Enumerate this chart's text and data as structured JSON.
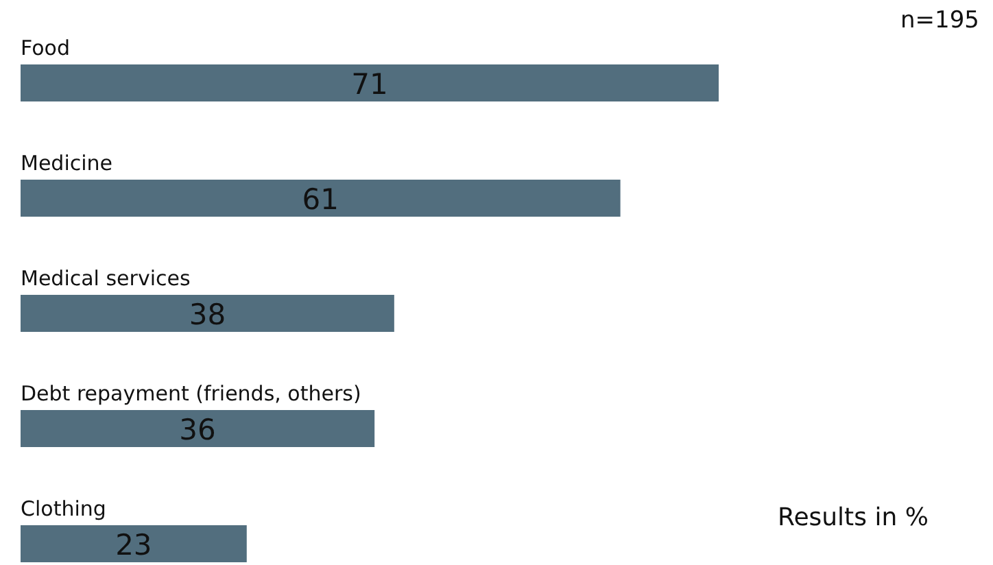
{
  "chart_data": {
    "type": "bar",
    "orientation": "horizontal",
    "categories": [
      "Food",
      "Medicine",
      "Medical services",
      "Debt repayment (friends, others)",
      "Clothing"
    ],
    "values": [
      71,
      61,
      38,
      36,
      23
    ],
    "color": "#526e7e",
    "data_labels": true,
    "annotations": [
      "n=195",
      "Results in %"
    ]
  }
}
